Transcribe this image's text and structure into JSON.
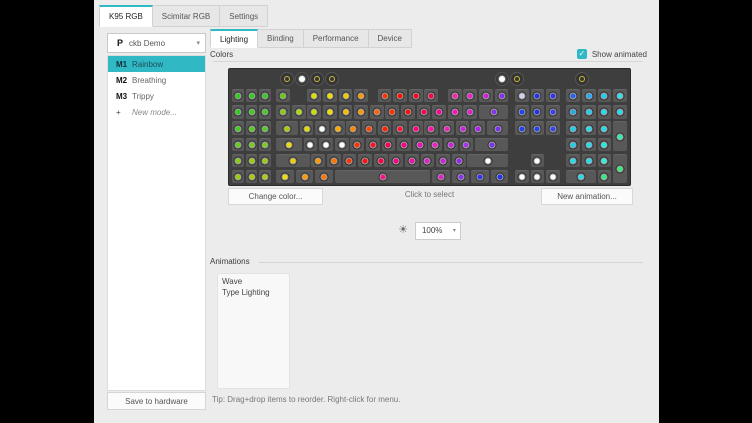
{
  "accent": "#30b8c5",
  "device_tabs": [
    {
      "label": "K95 RGB",
      "active": true
    },
    {
      "label": "Scimitar RGB",
      "active": false
    },
    {
      "label": "Settings",
      "active": false
    }
  ],
  "sidebar": {
    "profile": {
      "icon": "P",
      "name": "ckb Demo"
    },
    "modes": [
      {
        "key": "M1",
        "label": "Rainbow",
        "selected": true
      },
      {
        "key": "M2",
        "label": "Breathing",
        "selected": false
      },
      {
        "key": "M3",
        "label": "Trippy",
        "selected": false
      },
      {
        "key": "+",
        "label": "New mode...",
        "new": true
      }
    ],
    "save_button": "Save to hardware"
  },
  "main": {
    "tabs": [
      {
        "label": "Lighting",
        "active": true
      },
      {
        "label": "Binding",
        "active": false
      },
      {
        "label": "Performance",
        "active": false
      },
      {
        "label": "Device",
        "active": false
      }
    ],
    "colors_label": "Colors",
    "show_animated": {
      "label": "Show animated",
      "checked": true,
      "check_glyph": "✓"
    },
    "buttons": {
      "change_color": "Change color...",
      "click_to_select": "Click to select",
      "new_animation": "New animation..."
    },
    "brightness": {
      "icon": "☀",
      "value": "100%",
      "arrow": "▾"
    },
    "animations_label": "Animations",
    "animations": [
      "Wave",
      "Type Lighting"
    ],
    "tip": "Tip: Drag+drop items to reorder. Right-click for menu."
  },
  "keyboard": {
    "round_buttons": [
      {
        "name": "mr-button",
        "x": 3.56,
        "color": "#ccbb44",
        "ring": true
      },
      {
        "name": "m1-button",
        "x": 4.53,
        "color": "#ffffff",
        "ring": false
      },
      {
        "name": "m2-button",
        "x": 5.5,
        "color": "#ccbb44",
        "ring": true
      },
      {
        "name": "m3-button",
        "x": 6.47,
        "color": "#ccbb44",
        "ring": true
      },
      {
        "name": "brightness-button",
        "x": 17.35,
        "color": "#ffffff",
        "ring": false
      },
      {
        "name": "winlock-button",
        "x": 18.35,
        "color": "#ccbb33",
        "ring": true
      },
      {
        "name": "mute-button",
        "x": 22.5,
        "color": "#ccbb33",
        "ring": true
      }
    ],
    "keys": [
      [
        0,
        0.08,
        0.85,
        "#33cc22"
      ],
      [
        0,
        0.95,
        0.85,
        "#33cc22"
      ],
      [
        0,
        1.82,
        0.85,
        "#33cc22"
      ],
      [
        1,
        0.08,
        0.85,
        "#33cc22"
      ],
      [
        1,
        0.95,
        0.85,
        "#44cc22"
      ],
      [
        1,
        1.82,
        0.85,
        "#44cc22"
      ],
      [
        2,
        0.08,
        0.85,
        "#44cc22"
      ],
      [
        2,
        0.95,
        0.85,
        "#55cc22"
      ],
      [
        2,
        1.82,
        0.85,
        "#55cc22"
      ],
      [
        3,
        0.08,
        0.85,
        "#66cc22"
      ],
      [
        3,
        0.95,
        0.85,
        "#77cc22"
      ],
      [
        3,
        1.82,
        0.85,
        "#77cc22"
      ],
      [
        4,
        0.08,
        0.85,
        "#88cc18"
      ],
      [
        4,
        0.95,
        0.85,
        "#99cc11"
      ],
      [
        4,
        1.82,
        0.85,
        "#99cc11"
      ],
      [
        5,
        0.08,
        0.85,
        "#99cc11"
      ],
      [
        5,
        0.95,
        0.85,
        "#aacc11"
      ],
      [
        5,
        1.82,
        0.85,
        "#aacc11"
      ],
      [
        0,
        2.9,
        1,
        "#66cc11"
      ],
      [
        0,
        4.9,
        1,
        "#dddd00"
      ],
      [
        0,
        5.9,
        1,
        "#eedd00"
      ],
      [
        0,
        6.9,
        1,
        "#eecc00"
      ],
      [
        0,
        7.9,
        1,
        "#ff9900"
      ],
      [
        0,
        9.4,
        1,
        "#ff3300"
      ],
      [
        0,
        10.4,
        1,
        "#ff1100"
      ],
      [
        0,
        11.4,
        1,
        "#ff0022"
      ],
      [
        0,
        12.4,
        1,
        "#ff0044"
      ],
      [
        0,
        13.9,
        1,
        "#ff22aa"
      ],
      [
        0,
        14.9,
        1,
        "#ee22cc"
      ],
      [
        0,
        15.9,
        1,
        "#cc22dd"
      ],
      [
        0,
        16.9,
        1,
        "#8833ee"
      ],
      [
        0,
        18.2,
        1,
        "#d8ccf0"
      ],
      [
        0,
        19.2,
        1,
        "#2233ee"
      ],
      [
        0,
        20.2,
        1,
        "#3333ee"
      ],
      [
        0,
        21.5,
        1,
        "#2266ee"
      ],
      [
        0,
        22.5,
        1,
        "#22aaff"
      ],
      [
        0,
        23.5,
        1,
        "#22ccee"
      ],
      [
        0,
        24.5,
        1,
        "#33ddee"
      ],
      [
        1,
        2.9,
        1,
        "#88cc11"
      ],
      [
        1,
        3.9,
        1,
        "#aadd00"
      ],
      [
        1,
        4.9,
        1,
        "#ccdd00"
      ],
      [
        1,
        5.9,
        1,
        "#eedd00"
      ],
      [
        1,
        6.9,
        1,
        "#ffbb00"
      ],
      [
        1,
        7.9,
        1,
        "#ff9900"
      ],
      [
        1,
        8.9,
        1,
        "#ff6600"
      ],
      [
        1,
        9.9,
        1,
        "#ff3300"
      ],
      [
        1,
        10.9,
        1,
        "#ff1111"
      ],
      [
        1,
        11.9,
        1,
        "#ff0055"
      ],
      [
        1,
        12.9,
        1,
        "#ff0099"
      ],
      [
        1,
        13.9,
        1,
        "#ff11bb"
      ],
      [
        1,
        14.9,
        1,
        "#dd22cc"
      ],
      [
        1,
        15.9,
        2,
        "#8833ee"
      ],
      [
        1,
        18.2,
        1,
        "#2244ee"
      ],
      [
        1,
        19.2,
        1,
        "#2233ee"
      ],
      [
        1,
        20.2,
        1,
        "#3344ee"
      ],
      [
        1,
        21.5,
        1,
        "#22aaee"
      ],
      [
        1,
        22.5,
        1,
        "#22ccee"
      ],
      [
        1,
        23.5,
        1,
        "#22ddee"
      ],
      [
        1,
        24.5,
        1,
        "#22ddee"
      ],
      [
        2,
        2.9,
        1.5,
        "#aacc00"
      ],
      [
        2,
        4.4,
        1,
        "#dddd00"
      ],
      [
        2,
        5.4,
        1,
        "#ffffff"
      ],
      [
        2,
        6.4,
        1,
        "#ffaa00"
      ],
      [
        2,
        7.4,
        1,
        "#ff8800"
      ],
      [
        2,
        8.4,
        1,
        "#ff4400"
      ],
      [
        2,
        9.4,
        1,
        "#ff2200"
      ],
      [
        2,
        10.4,
        1,
        "#ff1133"
      ],
      [
        2,
        11.4,
        1,
        "#ff0077"
      ],
      [
        2,
        12.4,
        1,
        "#ff11aa"
      ],
      [
        2,
        13.4,
        1,
        "#ee22bb"
      ],
      [
        2,
        14.4,
        1,
        "#cc22dd"
      ],
      [
        2,
        15.4,
        1,
        "#aa22ee"
      ],
      [
        2,
        16.4,
        1.5,
        "#7733ee"
      ],
      [
        2,
        18.2,
        1,
        "#2244ee"
      ],
      [
        2,
        19.2,
        1,
        "#2244ee"
      ],
      [
        2,
        20.2,
        1,
        "#3344ee"
      ],
      [
        2,
        21.5,
        1,
        "#22ccee"
      ],
      [
        2,
        22.5,
        1,
        "#22ddee"
      ],
      [
        2,
        23.5,
        1,
        "#22ddee"
      ],
      [
        2,
        24.5,
        1,
        "#33eeaa",
        2
      ],
      [
        3,
        2.9,
        1.75,
        "#eedd00"
      ],
      [
        3,
        4.65,
        1,
        "#ffffff"
      ],
      [
        3,
        5.65,
        1,
        "#ffffff"
      ],
      [
        3,
        6.65,
        1,
        "#ffffff"
      ],
      [
        3,
        7.65,
        1,
        "#ff3300"
      ],
      [
        3,
        8.65,
        1,
        "#ff1122"
      ],
      [
        3,
        9.65,
        1,
        "#ff0055"
      ],
      [
        3,
        10.65,
        1,
        "#ff0088"
      ],
      [
        3,
        11.65,
        1,
        "#ee11bb"
      ],
      [
        3,
        12.65,
        1,
        "#ee22cc"
      ],
      [
        3,
        13.65,
        1,
        "#cc22dd"
      ],
      [
        3,
        14.65,
        1,
        "#aa33ee"
      ],
      [
        3,
        15.65,
        2.25,
        "#7733ee"
      ],
      [
        3,
        21.5,
        1,
        "#22ccee"
      ],
      [
        3,
        22.5,
        1,
        "#22ddee"
      ],
      [
        3,
        23.5,
        1,
        "#22eedd"
      ],
      [
        4,
        2.9,
        2.25,
        "#eecc00"
      ],
      [
        4,
        5.15,
        1,
        "#ff9900"
      ],
      [
        4,
        6.15,
        1,
        "#ff7700"
      ],
      [
        4,
        7.15,
        1,
        "#ff3300"
      ],
      [
        4,
        8.15,
        1,
        "#ff1111"
      ],
      [
        4,
        9.15,
        1,
        "#ff0044"
      ],
      [
        4,
        10.15,
        1,
        "#ff0088"
      ],
      [
        4,
        11.15,
        1,
        "#ee11aa"
      ],
      [
        4,
        12.15,
        1,
        "#dd22cc"
      ],
      [
        4,
        13.15,
        1,
        "#cc22dd"
      ],
      [
        4,
        14.15,
        1,
        "#9922ee"
      ],
      [
        4,
        15.15,
        2.75,
        "#ffffff"
      ],
      [
        4,
        19.2,
        1,
        "#ffffff"
      ],
      [
        4,
        21.5,
        1,
        "#22ddee"
      ],
      [
        4,
        22.5,
        1,
        "#22ddee"
      ],
      [
        4,
        23.5,
        1,
        "#33eedd"
      ],
      [
        4,
        24.5,
        1,
        "#33ee77",
        2
      ],
      [
        5,
        2.9,
        1.25,
        "#eedd00"
      ],
      [
        5,
        4.15,
        1.25,
        "#ff9900"
      ],
      [
        5,
        5.4,
        1.25,
        "#ff7700"
      ],
      [
        5,
        6.65,
        6.25,
        "#ff1188"
      ],
      [
        5,
        12.9,
        1.25,
        "#dd22cc"
      ],
      [
        5,
        14.15,
        1.25,
        "#8833ee"
      ],
      [
        5,
        15.4,
        1.25,
        "#3333ee"
      ],
      [
        5,
        16.65,
        1.25,
        "#2233ee"
      ],
      [
        5,
        18.2,
        1,
        "#ffffff"
      ],
      [
        5,
        19.2,
        1,
        "#ffffff"
      ],
      [
        5,
        20.2,
        1,
        "#ffffff"
      ],
      [
        5,
        21.5,
        2,
        "#22ddee"
      ],
      [
        5,
        23.5,
        1,
        "#33ee88"
      ]
    ]
  }
}
